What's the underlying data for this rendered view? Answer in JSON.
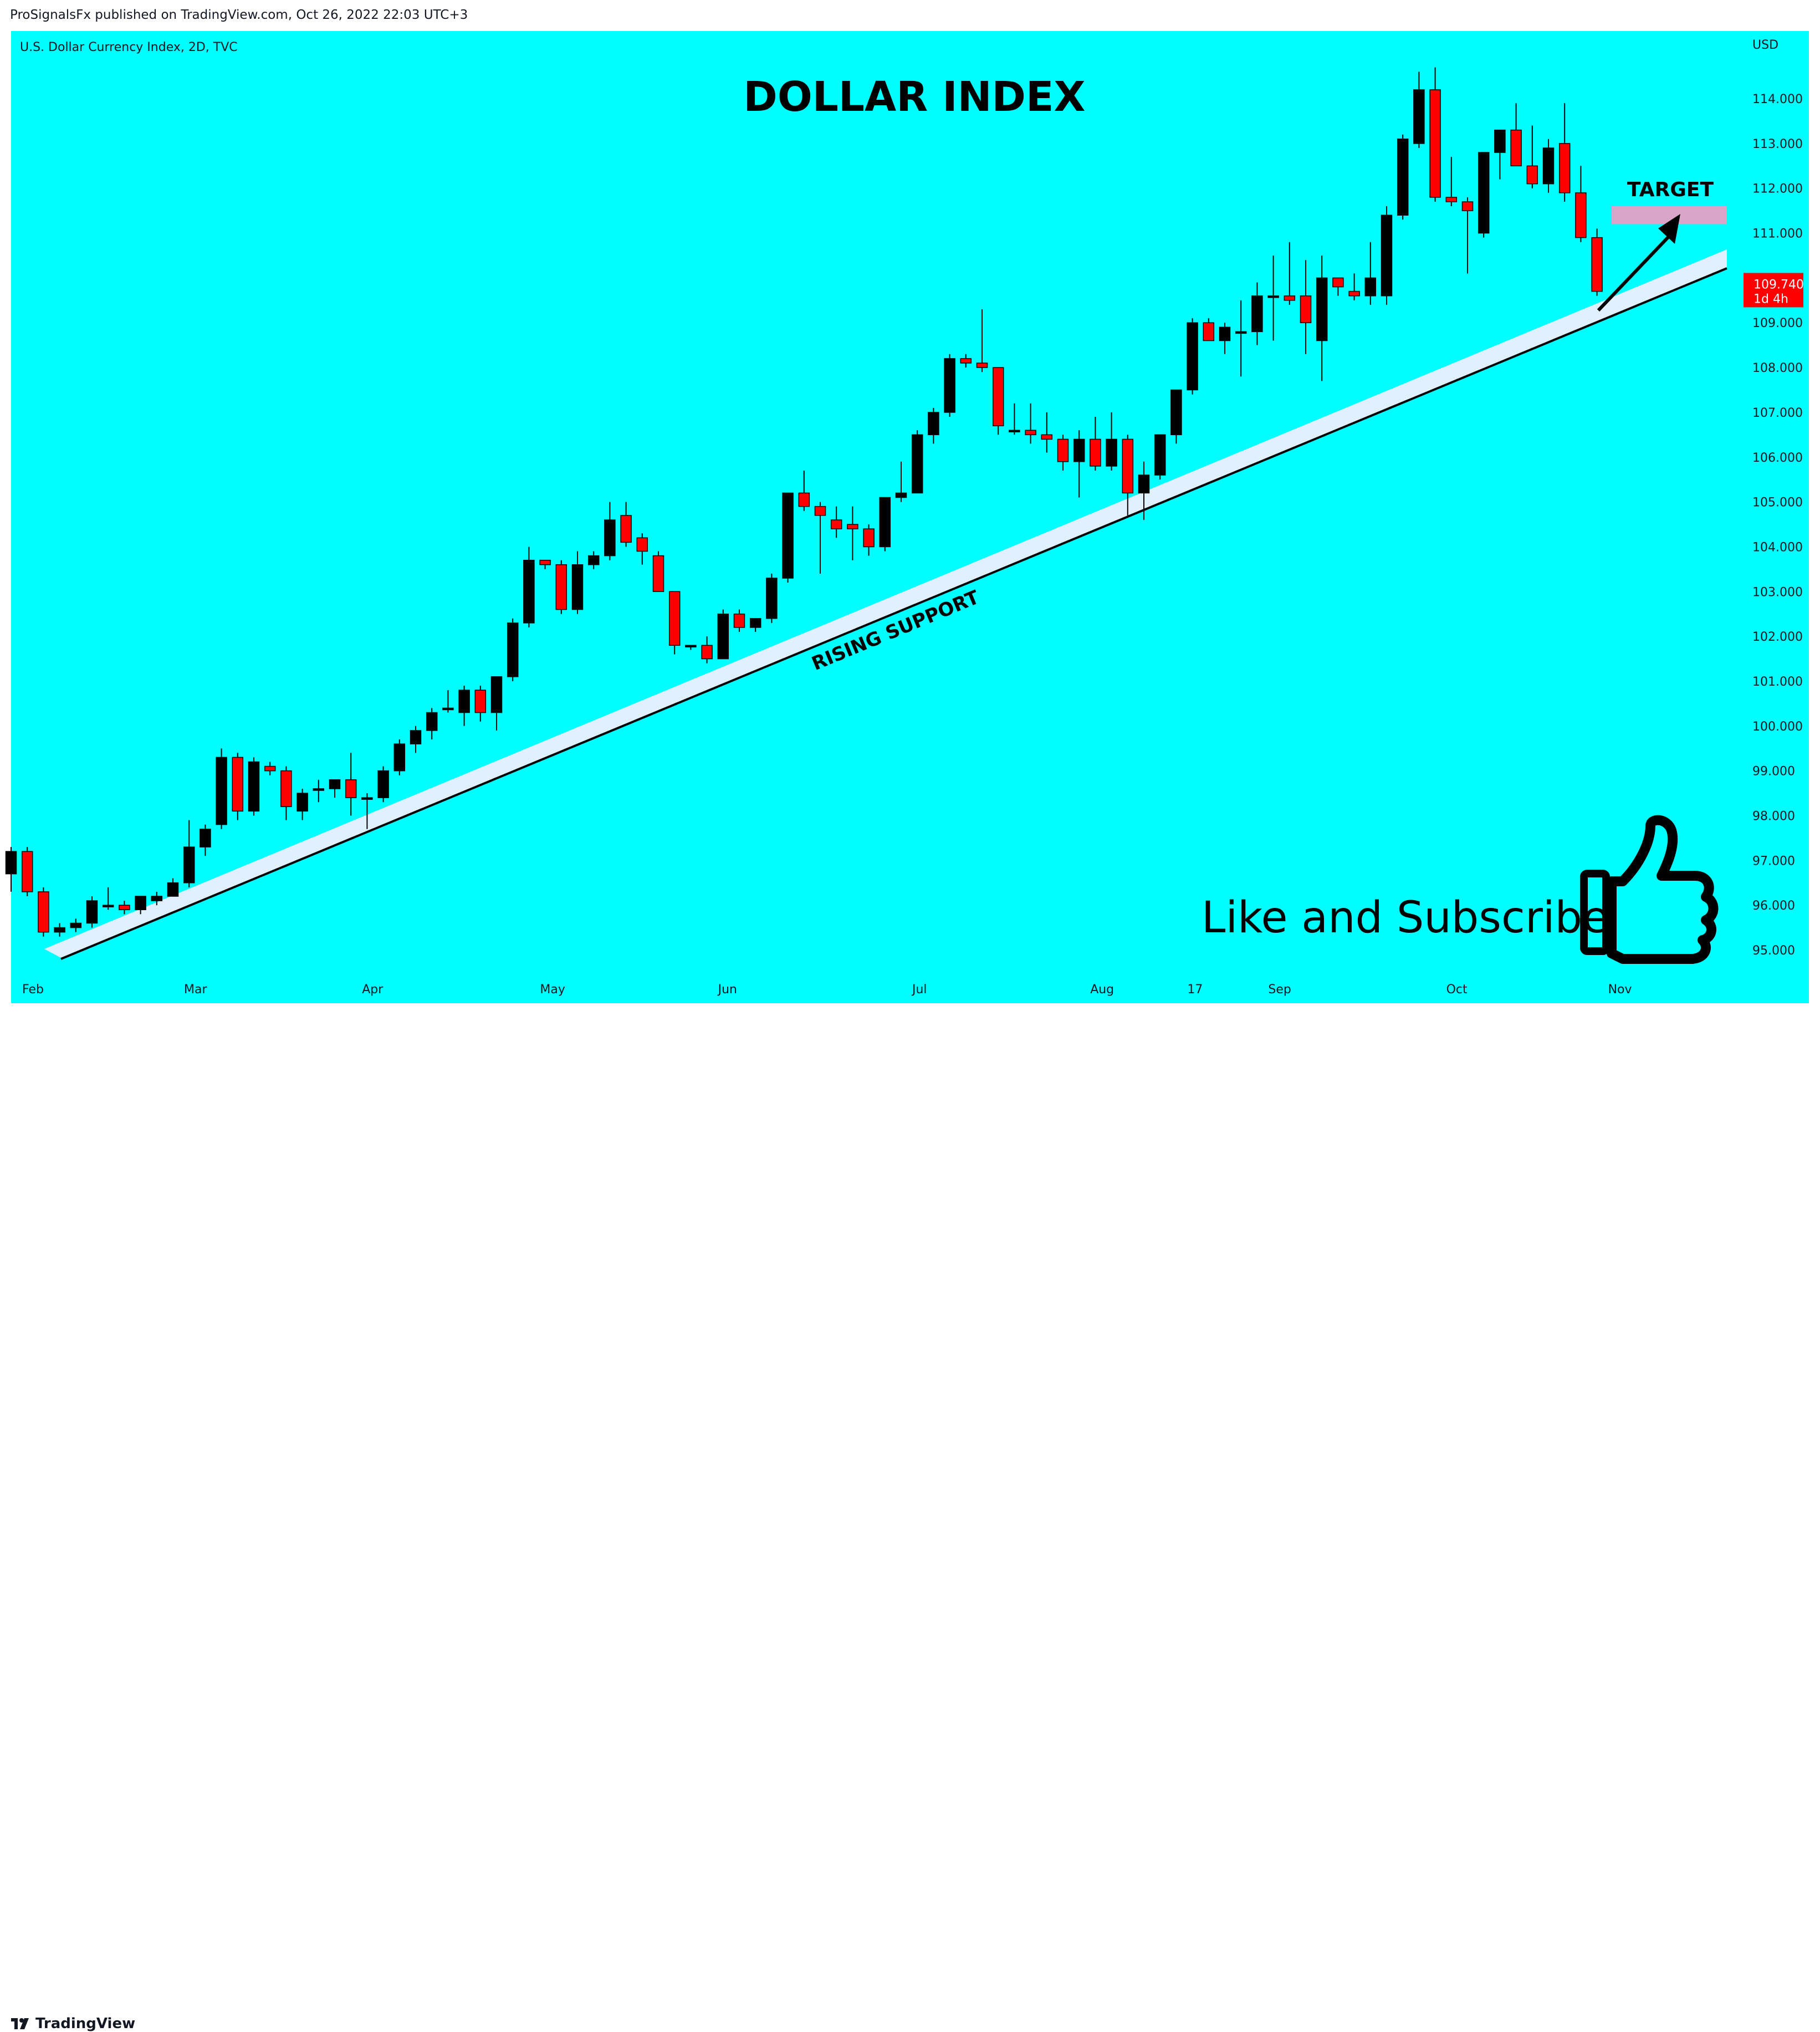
{
  "header": {
    "publisher_text": "ProSignalsFx published on TradingView.com, Oct 26, 2022 22:03 UTC+3"
  },
  "footer": {
    "brand": "TradingView",
    "logo_icon": "tradingview-logo-icon"
  },
  "colors": {
    "background": "#00ffff",
    "bull": "#000000",
    "bear": "#ff0000",
    "support_band": "#e0f0ff",
    "target_zone": "#d9a6c8"
  },
  "chart_data": {
    "type": "candlestick",
    "symbol_label": "U.S. Dollar Currency Index, 2D, TVC",
    "title": "DOLLAR INDEX",
    "currency_label": "USD",
    "ylim": [
      94.0,
      116.0
    ],
    "y_ticks": [
      "95.000",
      "96.000",
      "97.000",
      "98.000",
      "99.000",
      "100.000",
      "101.000",
      "102.000",
      "103.000",
      "104.000",
      "105.000",
      "106.000",
      "107.000",
      "108.000",
      "109.000",
      "110.000",
      "111.000",
      "112.000",
      "113.000",
      "114.000"
    ],
    "x_labels": [
      {
        "label": "Feb",
        "index": 0
      },
      {
        "label": "Mar",
        "index": 10
      },
      {
        "label": "Apr",
        "index": 21
      },
      {
        "label": "May",
        "index": 32
      },
      {
        "label": "Jun",
        "index": 43
      },
      {
        "label": "Jul",
        "index": 55
      },
      {
        "label": "Aug",
        "index": 66
      },
      {
        "label": "17",
        "index": 72
      },
      {
        "label": "Sep",
        "index": 77
      },
      {
        "label": "Oct",
        "index": 88
      },
      {
        "label": "Nov",
        "index": 98
      }
    ],
    "candles": [
      [
        96.7,
        97.3,
        96.3,
        97.2
      ],
      [
        97.2,
        97.3,
        96.2,
        96.3
      ],
      [
        96.3,
        96.4,
        95.3,
        95.4
      ],
      [
        95.4,
        95.6,
        95.3,
        95.5
      ],
      [
        95.5,
        95.7,
        95.4,
        95.6
      ],
      [
        95.6,
        96.2,
        95.5,
        96.1
      ],
      [
        96.0,
        96.4,
        95.9,
        96.0
      ],
      [
        96.0,
        96.1,
        95.8,
        95.9
      ],
      [
        95.9,
        96.2,
        95.8,
        96.2
      ],
      [
        96.1,
        96.3,
        96.0,
        96.2
      ],
      [
        96.2,
        96.6,
        96.2,
        96.5
      ],
      [
        96.5,
        97.9,
        96.4,
        97.3
      ],
      [
        97.3,
        97.8,
        97.1,
        97.7
      ],
      [
        97.8,
        99.5,
        97.7,
        99.3
      ],
      [
        99.3,
        99.4,
        97.9,
        98.1
      ],
      [
        98.1,
        99.3,
        98.0,
        99.2
      ],
      [
        99.1,
        99.2,
        98.9,
        99.0
      ],
      [
        99.0,
        99.1,
        97.9,
        98.2
      ],
      [
        98.1,
        98.6,
        97.9,
        98.5
      ],
      [
        98.6,
        98.8,
        98.3,
        98.6
      ],
      [
        98.6,
        98.8,
        98.4,
        98.8
      ],
      [
        98.8,
        99.4,
        98.0,
        98.4
      ],
      [
        98.4,
        98.5,
        97.7,
        98.4
      ],
      [
        98.4,
        99.1,
        98.3,
        99.0
      ],
      [
        99.0,
        99.7,
        98.9,
        99.6
      ],
      [
        99.6,
        100.0,
        99.4,
        99.9
      ],
      [
        99.9,
        100.4,
        99.7,
        100.3
      ],
      [
        100.4,
        100.8,
        100.3,
        100.4
      ],
      [
        100.3,
        100.9,
        100.0,
        100.8
      ],
      [
        100.8,
        100.9,
        100.1,
        100.3
      ],
      [
        100.3,
        101.1,
        99.9,
        101.1
      ],
      [
        101.1,
        102.4,
        101.0,
        102.3
      ],
      [
        102.3,
        104.0,
        102.2,
        103.7
      ],
      [
        103.7,
        103.7,
        103.5,
        103.6
      ],
      [
        103.6,
        103.7,
        102.5,
        102.6
      ],
      [
        102.6,
        103.9,
        102.5,
        103.6
      ],
      [
        103.6,
        103.9,
        103.5,
        103.8
      ],
      [
        103.8,
        105.0,
        103.7,
        104.6
      ],
      [
        104.7,
        105.0,
        104.0,
        104.1
      ],
      [
        104.2,
        104.3,
        103.6,
        103.9
      ],
      [
        103.8,
        103.9,
        103.0,
        103.0
      ],
      [
        103.0,
        103.0,
        101.6,
        101.8
      ],
      [
        101.8,
        101.8,
        101.7,
        101.8
      ],
      [
        101.8,
        102.0,
        101.4,
        101.5
      ],
      [
        101.5,
        102.6,
        101.5,
        102.5
      ],
      [
        102.5,
        102.6,
        102.1,
        102.2
      ],
      [
        102.2,
        102.4,
        102.1,
        102.4
      ],
      [
        102.4,
        103.4,
        102.3,
        103.3
      ],
      [
        103.3,
        105.2,
        103.2,
        105.2
      ],
      [
        105.2,
        105.7,
        104.8,
        104.9
      ],
      [
        104.9,
        105.0,
        103.4,
        104.7
      ],
      [
        104.6,
        104.9,
        104.2,
        104.4
      ],
      [
        104.5,
        104.9,
        103.7,
        104.4
      ],
      [
        104.4,
        104.5,
        103.8,
        104.0
      ],
      [
        104.0,
        105.1,
        103.9,
        105.1
      ],
      [
        105.1,
        105.9,
        105.0,
        105.2
      ],
      [
        105.2,
        106.6,
        105.2,
        106.5
      ],
      [
        106.5,
        107.1,
        106.3,
        107.0
      ],
      [
        107.0,
        108.3,
        106.9,
        108.2
      ],
      [
        108.2,
        108.3,
        108.0,
        108.1
      ],
      [
        108.1,
        109.3,
        107.9,
        108.0
      ],
      [
        108.0,
        108.0,
        106.5,
        106.7
      ],
      [
        106.6,
        107.2,
        106.5,
        106.6
      ],
      [
        106.6,
        107.2,
        106.3,
        106.5
      ],
      [
        106.5,
        107.0,
        106.1,
        106.4
      ],
      [
        106.4,
        106.5,
        105.7,
        105.9
      ],
      [
        105.9,
        106.6,
        105.1,
        106.4
      ],
      [
        106.4,
        106.9,
        105.7,
        105.8
      ],
      [
        105.8,
        107.0,
        105.7,
        106.4
      ],
      [
        106.4,
        106.5,
        104.7,
        105.2
      ],
      [
        105.2,
        105.9,
        104.6,
        105.6
      ],
      [
        105.6,
        106.5,
        105.5,
        106.5
      ],
      [
        106.5,
        107.5,
        106.3,
        107.5
      ],
      [
        107.5,
        109.1,
        107.4,
        109.0
      ],
      [
        109.0,
        109.1,
        108.6,
        108.6
      ],
      [
        108.6,
        109.0,
        108.3,
        108.9
      ],
      [
        108.8,
        109.5,
        107.8,
        108.8
      ],
      [
        108.8,
        109.9,
        108.5,
        109.6
      ],
      [
        109.6,
        110.5,
        108.6,
        109.6
      ],
      [
        109.6,
        110.8,
        109.4,
        109.5
      ],
      [
        109.6,
        110.4,
        108.3,
        109.0
      ],
      [
        108.6,
        110.5,
        107.7,
        110.0
      ],
      [
        110.0,
        110.0,
        109.6,
        109.8
      ],
      [
        109.7,
        110.1,
        109.5,
        109.6
      ],
      [
        109.6,
        110.8,
        109.4,
        110.0
      ],
      [
        109.6,
        111.6,
        109.4,
        111.4
      ],
      [
        111.4,
        113.2,
        111.3,
        113.1
      ],
      [
        113.0,
        114.6,
        112.9,
        114.2
      ],
      [
        114.2,
        114.7,
        111.7,
        111.8
      ],
      [
        111.8,
        112.7,
        111.6,
        111.7
      ],
      [
        111.7,
        111.8,
        110.1,
        111.5
      ],
      [
        111.0,
        112.8,
        110.9,
        112.8
      ],
      [
        112.8,
        113.3,
        112.2,
        113.3
      ],
      [
        113.3,
        113.9,
        112.5,
        112.5
      ],
      [
        112.5,
        113.4,
        112.0,
        112.1
      ],
      [
        112.1,
        113.1,
        111.9,
        112.9
      ],
      [
        113.0,
        113.9,
        111.7,
        111.9
      ],
      [
        111.9,
        112.5,
        110.8,
        110.9
      ],
      [
        110.9,
        111.1,
        109.6,
        109.7
      ]
    ],
    "last_price_label": "109.740",
    "countdown_label": "1d 4h",
    "support_label": "RISING SUPPORT",
    "target_label": "TARGET",
    "target_zone": [
      111.2,
      111.6
    ],
    "cta_text": "Like and Subscribe",
    "cta_icon": "thumbs-up-icon"
  }
}
